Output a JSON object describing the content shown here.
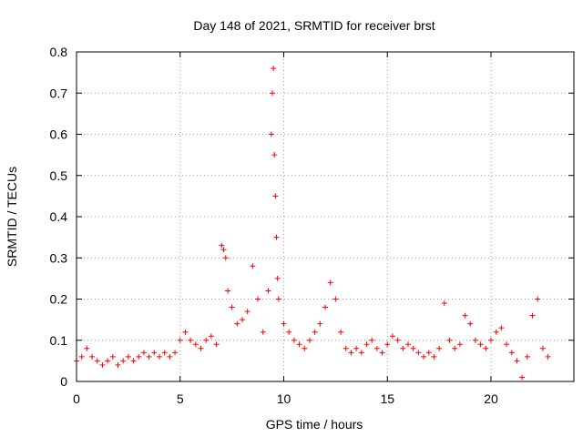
{
  "chart_data": {
    "type": "scatter",
    "title": "Day 148 of 2021, SRMTID for receiver brst",
    "xlabel": "GPS time / hours",
    "ylabel": "SRMTID / TECUs",
    "xlim": [
      0,
      24
    ],
    "ylim": [
      0,
      0.8
    ],
    "xticks": [
      0,
      5,
      10,
      15,
      20
    ],
    "yticks": [
      0,
      0.1,
      0.2,
      0.3,
      0.4,
      0.5,
      0.6,
      0.7,
      0.8
    ],
    "xtick_labels": [
      "0",
      "5",
      "10",
      "15",
      "20"
    ],
    "ytick_labels": [
      "0",
      "0.1",
      "0.2",
      "0.3",
      "0.4",
      "0.5",
      "0.6",
      "0.7",
      "0.8"
    ],
    "grid": true,
    "marker": "+",
    "color": "#ff0000",
    "series": [
      {
        "name": "SRMTID",
        "x": [
          0.0,
          0.25,
          0.5,
          0.75,
          1.0,
          1.25,
          1.5,
          1.75,
          2.0,
          2.25,
          2.5,
          2.75,
          3.0,
          3.25,
          3.5,
          3.75,
          4.0,
          4.25,
          4.5,
          4.75,
          5.0,
          5.25,
          5.5,
          5.75,
          6.0,
          6.25,
          6.5,
          6.75,
          7.0,
          7.1,
          7.2,
          7.3,
          7.5,
          7.75,
          8.0,
          8.25,
          8.5,
          8.75,
          9.0,
          9.25,
          9.4,
          9.45,
          9.5,
          9.55,
          9.6,
          9.65,
          9.7,
          9.75,
          10.0,
          10.25,
          10.5,
          10.75,
          11.0,
          11.25,
          11.5,
          11.75,
          12.0,
          12.25,
          12.5,
          12.75,
          13.0,
          13.25,
          13.5,
          13.75,
          14.0,
          14.25,
          14.5,
          14.75,
          15.0,
          15.25,
          15.5,
          15.75,
          16.0,
          16.25,
          16.5,
          16.75,
          17.0,
          17.25,
          17.5,
          17.75,
          18.0,
          18.25,
          18.5,
          18.75,
          19.0,
          19.25,
          19.5,
          19.75,
          20.0,
          20.25,
          20.5,
          20.75,
          21.0,
          21.25,
          21.5,
          21.75,
          22.0,
          22.25,
          22.5,
          22.75
        ],
        "y": [
          0.05,
          0.06,
          0.08,
          0.06,
          0.05,
          0.04,
          0.05,
          0.06,
          0.04,
          0.05,
          0.06,
          0.05,
          0.06,
          0.07,
          0.06,
          0.07,
          0.06,
          0.07,
          0.06,
          0.07,
          0.1,
          0.12,
          0.1,
          0.09,
          0.08,
          0.1,
          0.11,
          0.09,
          0.33,
          0.32,
          0.3,
          0.22,
          0.18,
          0.14,
          0.15,
          0.17,
          0.28,
          0.2,
          0.12,
          0.22,
          0.6,
          0.7,
          0.76,
          0.55,
          0.45,
          0.35,
          0.25,
          0.2,
          0.14,
          0.12,
          0.1,
          0.09,
          0.08,
          0.1,
          0.12,
          0.14,
          0.18,
          0.24,
          0.2,
          0.12,
          0.08,
          0.07,
          0.08,
          0.07,
          0.09,
          0.1,
          0.08,
          0.07,
          0.09,
          0.11,
          0.1,
          0.08,
          0.09,
          0.08,
          0.07,
          0.06,
          0.07,
          0.06,
          0.08,
          0.19,
          0.1,
          0.08,
          0.09,
          0.16,
          0.14,
          0.1,
          0.09,
          0.08,
          0.1,
          0.12,
          0.13,
          0.09,
          0.07,
          0.05,
          0.01,
          0.06,
          0.16,
          0.2,
          0.08,
          0.06
        ]
      }
    ]
  }
}
